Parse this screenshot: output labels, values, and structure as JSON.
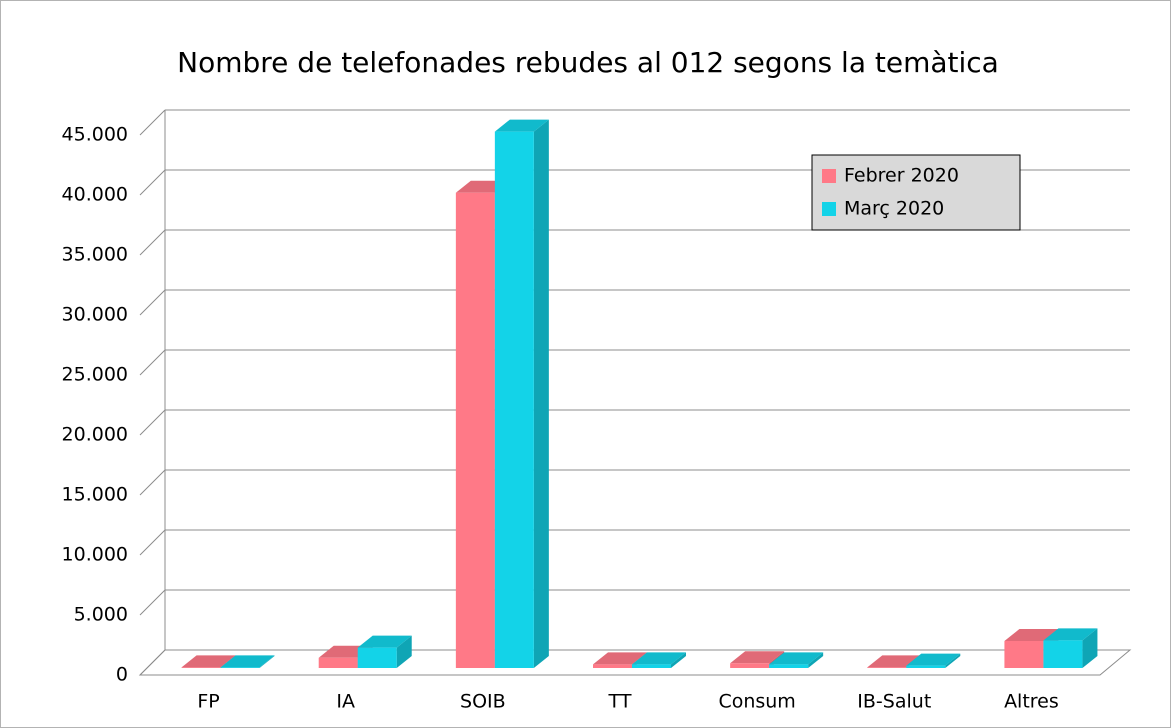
{
  "chart_data": {
    "type": "bar3d",
    "title": "Nombre de telefonades rebudes al 012 segons la temàtica",
    "categories": [
      "FP",
      "IA",
      "SOIB",
      "TT",
      "Consum",
      "IB-Salut",
      "Altres"
    ],
    "series": [
      {
        "name": "Febrer 2020",
        "color": "#ff7987",
        "values": [
          50,
          850,
          39600,
          300,
          400,
          50,
          2250
        ]
      },
      {
        "name": "Març 2020",
        "color": "#13d3e8",
        "values": [
          50,
          1700,
          44700,
          300,
          300,
          200,
          2300
        ]
      }
    ],
    "ylim": [
      0,
      45000
    ],
    "yticks": [
      0,
      {
        "value": 5000,
        "label": "5.000"
      },
      {
        "value": 10000,
        "label": "10.000"
      },
      {
        "value": 15000,
        "label": "15.000"
      },
      {
        "value": 20000,
        "label": "20.000"
      },
      {
        "value": 25000,
        "label": "25.000"
      },
      {
        "value": 30000,
        "label": "30.000"
      },
      {
        "value": 35000,
        "label": "35.000"
      },
      {
        "value": 40000,
        "label": "40.000"
      },
      {
        "value": 45000,
        "label": "45.000"
      }
    ],
    "grid": true,
    "legend": "upper right"
  }
}
